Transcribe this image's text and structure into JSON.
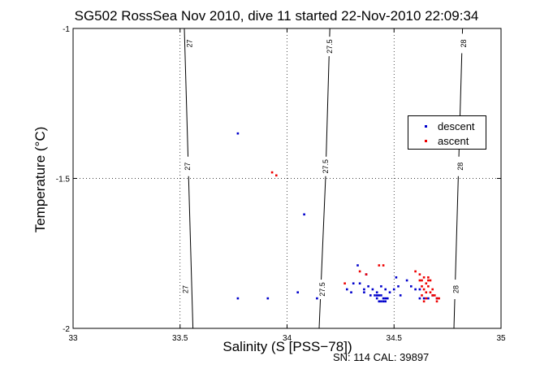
{
  "title": "SG502 RossSea Nov 2010, dive 11 started 22-Nov-2010 22:09:34",
  "footer": "SN: 114  CAL: 39897",
  "chart_data": {
    "type": "scatter",
    "title": "SG502 RossSea Nov 2010, dive 11 started 22-Nov-2010 22:09:34",
    "xlabel": "Salinity (S [PSS−78])",
    "ylabel": "Temperature (°C)",
    "xlim": [
      33,
      35
    ],
    "ylim": [
      -2,
      -1
    ],
    "xticks": [
      33,
      33.5,
      34,
      34.5,
      35
    ],
    "xtick_labels": [
      "33",
      "33.5",
      "34",
      "34.5",
      "35"
    ],
    "yticks": [
      -2,
      -1.5,
      -1
    ],
    "ytick_labels": [
      "-2",
      "-1.5",
      "-1"
    ],
    "grid": "dotted at major ticks",
    "legend_position": "right",
    "colors": {
      "descent": "#0000cc",
      "ascent": "#ee0000",
      "contour": "#000000"
    },
    "density_contours": [
      {
        "label": "27",
        "points": [
          [
            33.52,
            -1.0
          ],
          [
            33.54,
            -1.5
          ],
          [
            33.56,
            -2.0
          ]
        ],
        "label_positions": [
          [
            33.545,
            -1.05
          ],
          [
            33.535,
            -1.46
          ],
          [
            33.525,
            -1.87
          ]
        ]
      },
      {
        "label": "27.5",
        "points": [
          [
            34.2,
            -1.0
          ],
          [
            34.18,
            -1.5
          ],
          [
            34.15,
            -2.0
          ]
        ],
        "label_positions": [
          [
            34.2,
            -1.06
          ],
          [
            34.18,
            -1.46
          ],
          [
            34.165,
            -1.87
          ]
        ]
      },
      {
        "label": "28",
        "points": [
          [
            34.82,
            -1.0
          ],
          [
            34.8,
            -1.5
          ],
          [
            34.78,
            -2.0
          ]
        ],
        "label_positions": [
          [
            34.825,
            -1.05
          ],
          [
            34.81,
            -1.46
          ],
          [
            34.79,
            -1.87
          ]
        ]
      }
    ],
    "series": [
      {
        "name": "descent",
        "points": [
          [
            33.77,
            -1.35
          ],
          [
            33.77,
            -1.9
          ],
          [
            33.91,
            -1.9
          ],
          [
            34.05,
            -1.88
          ],
          [
            34.08,
            -1.62
          ],
          [
            34.14,
            -1.9
          ],
          [
            34.33,
            -1.79
          ],
          [
            34.37,
            -1.82
          ],
          [
            34.31,
            -1.85
          ],
          [
            34.28,
            -1.87
          ],
          [
            34.36,
            -1.87
          ],
          [
            34.38,
            -1.86
          ],
          [
            34.4,
            -1.87
          ],
          [
            34.42,
            -1.88
          ],
          [
            34.44,
            -1.86
          ],
          [
            34.46,
            -1.87
          ],
          [
            34.48,
            -1.88
          ],
          [
            34.5,
            -1.87
          ],
          [
            34.52,
            -1.86
          ],
          [
            34.41,
            -1.89
          ],
          [
            34.42,
            -1.89
          ],
          [
            34.43,
            -1.89
          ],
          [
            34.44,
            -1.89
          ],
          [
            34.45,
            -1.9
          ],
          [
            34.46,
            -1.9
          ],
          [
            34.47,
            -1.9
          ],
          [
            34.42,
            -1.9
          ],
          [
            34.43,
            -1.91
          ],
          [
            34.44,
            -1.91
          ],
          [
            34.45,
            -1.91
          ],
          [
            34.46,
            -1.91
          ],
          [
            34.39,
            -1.89
          ],
          [
            34.36,
            -1.88
          ],
          [
            34.53,
            -1.89
          ],
          [
            34.51,
            -1.83
          ],
          [
            34.56,
            -1.84
          ],
          [
            34.58,
            -1.86
          ],
          [
            34.6,
            -1.87
          ],
          [
            34.62,
            -1.87
          ],
          [
            34.62,
            -1.9
          ],
          [
            34.64,
            -1.9
          ],
          [
            34.66,
            -1.9
          ],
          [
            34.68,
            -1.89
          ],
          [
            34.7,
            -1.9
          ],
          [
            34.34,
            -1.85
          ],
          [
            34.3,
            -1.88
          ]
        ]
      },
      {
        "name": "ascent",
        "points": [
          [
            33.93,
            -1.48
          ],
          [
            33.95,
            -1.49
          ],
          [
            34.43,
            -1.79
          ],
          [
            34.45,
            -1.79
          ],
          [
            34.34,
            -1.81
          ],
          [
            34.37,
            -1.82
          ],
          [
            34.27,
            -1.85
          ],
          [
            34.6,
            -1.81
          ],
          [
            34.62,
            -1.82
          ],
          [
            34.63,
            -1.84
          ],
          [
            34.63,
            -1.86
          ],
          [
            34.64,
            -1.87
          ],
          [
            34.63,
            -1.89
          ],
          [
            34.64,
            -1.91
          ],
          [
            34.65,
            -1.88
          ],
          [
            34.66,
            -1.86
          ],
          [
            34.67,
            -1.84
          ],
          [
            34.66,
            -1.83
          ],
          [
            34.65,
            -1.85
          ],
          [
            34.67,
            -1.88
          ],
          [
            34.68,
            -1.89
          ],
          [
            34.69,
            -1.89
          ],
          [
            34.7,
            -1.9
          ],
          [
            34.7,
            -1.91
          ],
          [
            34.71,
            -1.9
          ],
          [
            34.62,
            -1.84
          ],
          [
            34.64,
            -1.83
          ],
          [
            34.66,
            -1.84
          ],
          [
            34.68,
            -1.87
          ],
          [
            34.65,
            -1.9
          ]
        ]
      }
    ]
  }
}
